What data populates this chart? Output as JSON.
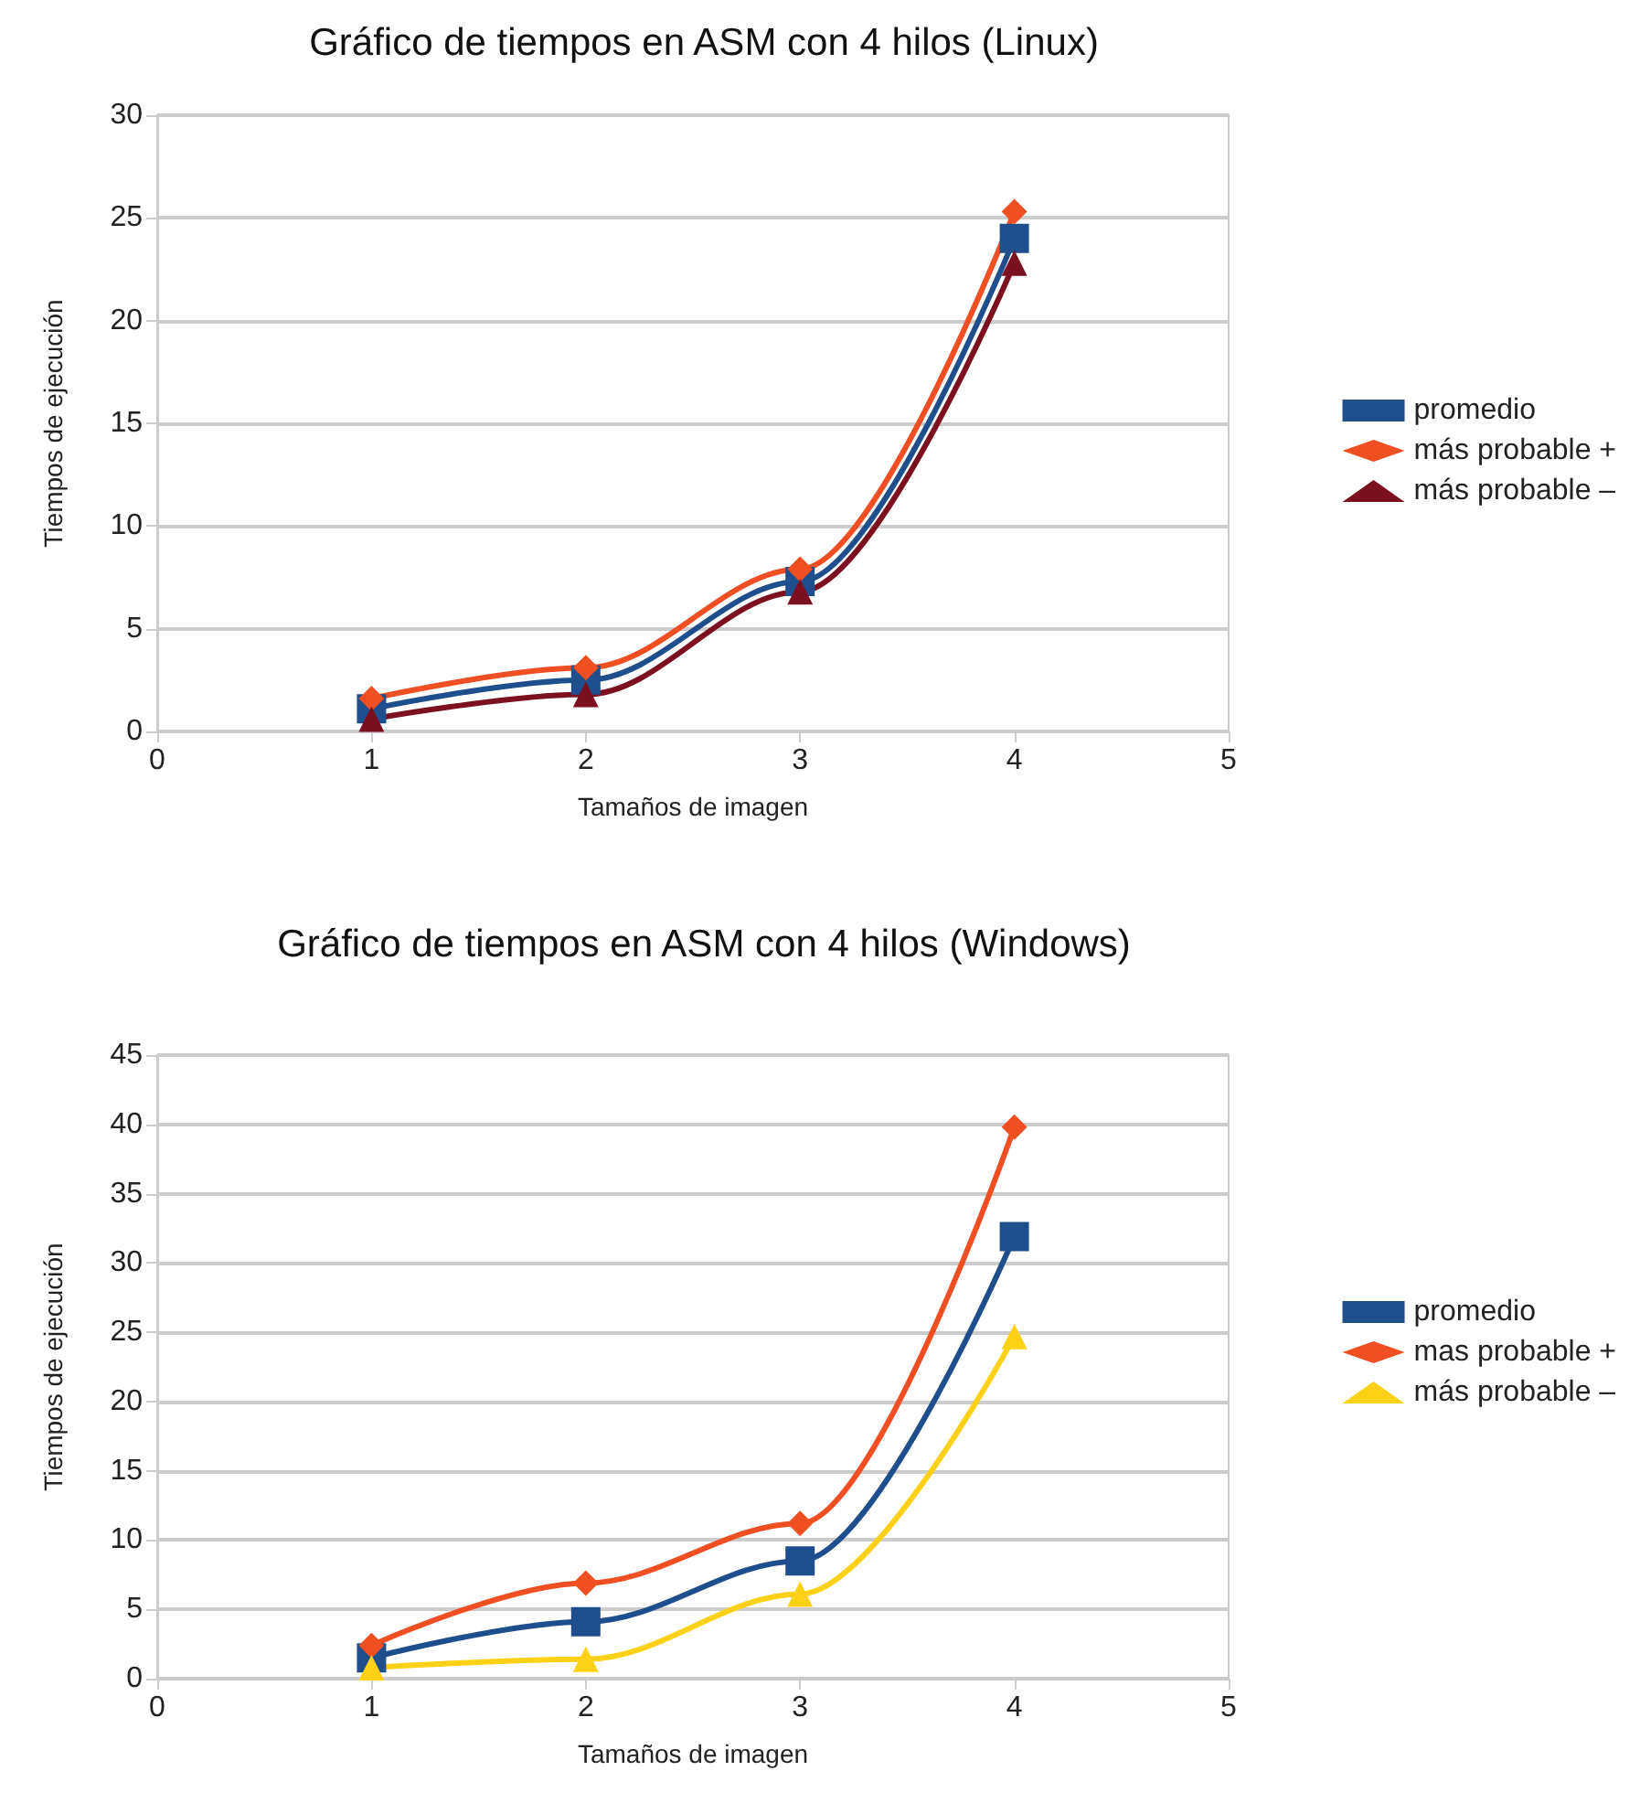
{
  "chart_data": [
    {
      "type": "line",
      "title": "Gráfico de tiempos en ASM con 4 hilos (Linux)",
      "xlabel": "Tamaños de imagen",
      "ylabel": "Tiempos de ejecución",
      "x": [
        1,
        2,
        3,
        4
      ],
      "xlim": [
        0,
        5
      ],
      "xticks": [
        0,
        1,
        2,
        3,
        4,
        5
      ],
      "ylim": [
        0,
        30
      ],
      "yticks": [
        0,
        5,
        10,
        15,
        20,
        25,
        30
      ],
      "grid": "y",
      "legend": "right",
      "series": [
        {
          "name": "promedio",
          "color": "#1f4e8c",
          "marker": "square",
          "values": [
            1.1,
            2.5,
            7.3,
            24.0
          ]
        },
        {
          "name": "más probable +",
          "color": "#f04e23",
          "marker": "diamond",
          "values": [
            1.6,
            3.1,
            7.9,
            25.3
          ]
        },
        {
          "name": "más probable –",
          "color": "#7b1020",
          "marker": "triangle",
          "values": [
            0.6,
            1.8,
            6.8,
            22.8
          ]
        }
      ]
    },
    {
      "type": "line",
      "title": "Gráfico de tiempos en ASM con 4 hilos (Windows)",
      "xlabel": "Tamaños de imagen",
      "ylabel": "Tiempos de ejecución",
      "x": [
        1,
        2,
        3,
        4
      ],
      "xlim": [
        0,
        5
      ],
      "xticks": [
        0,
        1,
        2,
        3,
        4,
        5
      ],
      "ylim": [
        0,
        45
      ],
      "yticks": [
        0,
        5,
        10,
        15,
        20,
        25,
        30,
        35,
        40,
        45
      ],
      "grid": "y",
      "legend": "right",
      "series": [
        {
          "name": "promedio",
          "color": "#1f4e8c",
          "marker": "square",
          "values": [
            1.5,
            4.1,
            8.5,
            31.9
          ]
        },
        {
          "name": "mas probable +",
          "color": "#f04e23",
          "marker": "diamond",
          "values": [
            2.4,
            6.9,
            11.2,
            39.8
          ]
        },
        {
          "name": "más probable –",
          "color": "#fcd116",
          "marker": "triangle",
          "values": [
            0.8,
            1.4,
            6.1,
            24.7
          ]
        }
      ]
    }
  ]
}
